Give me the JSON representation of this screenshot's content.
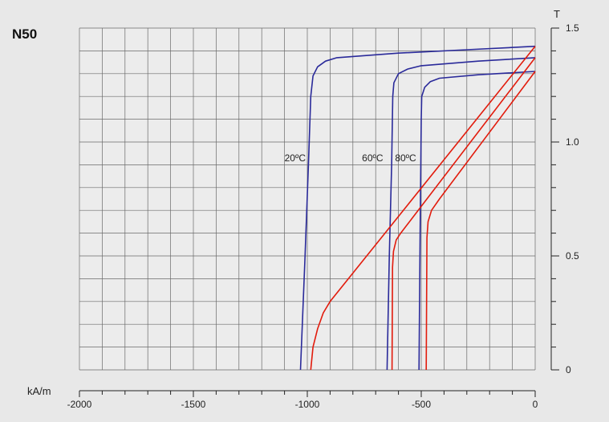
{
  "chart_data": {
    "type": "line",
    "title": "N50",
    "xlabel": "kA/m",
    "ylabel": "T",
    "xlim": [
      -2000,
      0
    ],
    "ylim": [
      0,
      1.5
    ],
    "x_ticks": [
      "-2000",
      "-1500",
      "-1000",
      "-500",
      "0"
    ],
    "y_ticks": [
      "0",
      "0.5",
      "1.0",
      "1.5"
    ],
    "grid": true,
    "curve_labels": [
      {
        "text": "20ºC",
        "x": -1100,
        "y": 0.93
      },
      {
        "text": "60ºC",
        "x": -760,
        "y": 0.93
      },
      {
        "text": "80ºC",
        "x": -615,
        "y": 0.93
      }
    ],
    "series": [
      {
        "color": "#2a2a9a",
        "points": [
          [
            0,
            1.42
          ],
          [
            -300,
            1.405
          ],
          [
            -600,
            1.39
          ],
          [
            -870,
            1.37
          ],
          [
            -920,
            1.355
          ],
          [
            -955,
            1.33
          ],
          [
            -975,
            1.29
          ],
          [
            -985,
            1.2
          ],
          [
            -995,
            0.9
          ],
          [
            -1010,
            0.5
          ],
          [
            -1030,
            0
          ]
        ]
      },
      {
        "color": "#2a2a9a",
        "points": [
          [
            0,
            1.37
          ],
          [
            -250,
            1.355
          ],
          [
            -500,
            1.335
          ],
          [
            -560,
            1.32
          ],
          [
            -600,
            1.3
          ],
          [
            -620,
            1.26
          ],
          [
            -625,
            1.2
          ],
          [
            -630,
            0.9
          ],
          [
            -640,
            0.5
          ],
          [
            -650,
            0
          ]
        ]
      },
      {
        "color": "#2a2a9a",
        "points": [
          [
            0,
            1.31
          ],
          [
            -250,
            1.295
          ],
          [
            -420,
            1.28
          ],
          [
            -460,
            1.265
          ],
          [
            -485,
            1.24
          ],
          [
            -498,
            1.2
          ],
          [
            -500,
            1.1
          ],
          [
            -505,
            0.6
          ],
          [
            -510,
            0
          ]
        ]
      },
      {
        "color": "#e21b0c",
        "points": [
          [
            0,
            1.42
          ],
          [
            -900,
            0.3
          ],
          [
            -930,
            0.25
          ],
          [
            -955,
            0.18
          ],
          [
            -975,
            0.1
          ],
          [
            -985,
            0
          ]
        ]
      },
      {
        "color": "#e21b0c",
        "points": [
          [
            0,
            1.37
          ],
          [
            -590,
            0.6
          ],
          [
            -610,
            0.57
          ],
          [
            -622,
            0.52
          ],
          [
            -626,
            0.45
          ],
          [
            -628,
            0
          ]
        ]
      },
      {
        "color": "#e21b0c",
        "points": [
          [
            0,
            1.31
          ],
          [
            -420,
            0.75
          ],
          [
            -455,
            0.7
          ],
          [
            -470,
            0.65
          ],
          [
            -475,
            0.58
          ],
          [
            -478,
            0
          ]
        ]
      }
    ]
  }
}
